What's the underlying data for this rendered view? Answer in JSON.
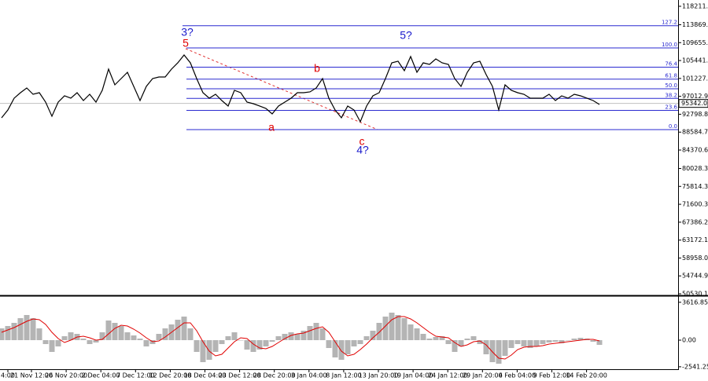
{
  "chart_data": [
    {
      "type": "line",
      "color": "#000000",
      "values": [
        91960,
        93800,
        96580,
        97870,
        98980,
        97500,
        97870,
        95650,
        92330,
        95650,
        97130,
        96580,
        97870,
        96020,
        97500,
        95650,
        98430,
        103420,
        99720,
        101200,
        102680,
        99350,
        96020,
        99350,
        101200,
        101570,
        101570,
        103420,
        104900,
        106750,
        104900,
        101200,
        97870,
        96580,
        97500,
        96020,
        94730,
        98430,
        97870,
        95650,
        95280,
        94730,
        94170,
        92880,
        94730,
        95650,
        96580,
        97870,
        97870,
        98060,
        98980,
        101200,
        96580,
        93800,
        91960,
        94730,
        93800,
        91030,
        94730,
        97130,
        97870,
        101200,
        104900,
        105270,
        103050,
        106380,
        102680,
        104900,
        104530,
        105820,
        104900,
        104530,
        101200,
        99350,
        102680,
        104900,
        105270,
        102120,
        99350,
        93800,
        99720,
        98430,
        97870,
        97500,
        96580,
        96580,
        96580,
        97500,
        96020,
        97130,
        96580,
        97500,
        97130,
        96580,
        96020,
        95100
      ],
      "ylim": [
        50160,
        119690
      ],
      "yticks": [
        118211.19,
        113869.39,
        109655.29,
        105441.15,
        101227.09,
        97012.99,
        92798.89,
        88584.79,
        84370.69,
        80028.39,
        75814.39,
        71600.39,
        67386.29,
        63172.19,
        58958.09,
        54744.99,
        50530.19
      ],
      "last_price": 95342.02,
      "fib_color": "#2a2ad0",
      "fib_levels": [
        {
          "label": "127.2",
          "price": 113641
        },
        {
          "label": "100.0",
          "price": 108411
        },
        {
          "label": "76.4",
          "price": 103873
        },
        {
          "label": "61.8",
          "price": 101066
        },
        {
          "label": "50.0",
          "price": 98797
        },
        {
          "label": "38.2",
          "price": 96527
        },
        {
          "label": "23.6",
          "price": 93720
        },
        {
          "label": "0.0",
          "price": 89182
        }
      ],
      "annotations": [
        "3?",
        "5",
        "b",
        "a",
        "c",
        "4?",
        "5?"
      ],
      "x_labels": [
        "4:00",
        "21 Nov 12:00",
        "26 Nov 20:00",
        "2 Dec 04:00",
        "7 Dec 12:00",
        "12 Dec 20:00",
        "18 Dec 04:00",
        "23 Dec 12:00",
        "28 Dec 20:00",
        "3 Jan 04:00",
        "8 Jan 12:00",
        "13 Jan 20:00",
        "19 Jan 04:00",
        "24 Jan 12:00",
        "29 Jan 20:00",
        "4 Feb 04:00",
        "9 Feb 12:00",
        "14 Feb 20:00"
      ]
    },
    {
      "type": "macd",
      "histogram": {
        "color": "#b4b4b4",
        "values": [
          1125,
          1350,
          1650,
          2100,
          2400,
          2100,
          1125,
          -375,
          -1125,
          -600,
          375,
          750,
          600,
          150,
          -375,
          -225,
          750,
          1875,
          1650,
          1350,
          750,
          450,
          150,
          -600,
          -375,
          600,
          1125,
          1500,
          1950,
          2250,
          1125,
          -1125,
          -2100,
          -1875,
          -1125,
          -375,
          375,
          750,
          0,
          -900,
          -1125,
          -900,
          -600,
          -150,
          375,
          600,
          750,
          600,
          900,
          1350,
          1650,
          1125,
          -750,
          -1650,
          -1875,
          -1350,
          -600,
          -375,
          375,
          900,
          1650,
          2250,
          2625,
          2400,
          2100,
          1500,
          1125,
          600,
          150,
          300,
          375,
          -375,
          -1125,
          -600,
          150,
          375,
          -375,
          -1350,
          -2100,
          -2250,
          -1500,
          -750,
          -375,
          -600,
          -750,
          -600,
          -375,
          -225,
          -150,
          -300,
          0,
          150,
          225,
          150,
          -150,
          -450
        ]
      },
      "signal": {
        "color": "#e00000",
        "values": [
          750,
          975,
          1200,
          1500,
          1800,
          2025,
          1950,
          1500,
          750,
          150,
          -225,
          0,
          300,
          375,
          225,
          0,
          75,
          600,
          1125,
          1425,
          1350,
          1050,
          675,
          225,
          -150,
          -75,
          300,
          750,
          1200,
          1650,
          1650,
          900,
          -150,
          -1050,
          -1500,
          -1350,
          -750,
          -150,
          225,
          150,
          -375,
          -750,
          -825,
          -600,
          -225,
          150,
          450,
          600,
          675,
          900,
          1125,
          1275,
          750,
          -150,
          -1050,
          -1500,
          -1350,
          -900,
          -375,
          225,
          750,
          1350,
          1950,
          2250,
          2250,
          2025,
          1650,
          1200,
          750,
          375,
          300,
          225,
          -225,
          -600,
          -450,
          -150,
          -75,
          -450,
          -1125,
          -1725,
          -1800,
          -1425,
          -900,
          -675,
          -600,
          -600,
          -525,
          -375,
          -300,
          -225,
          -150,
          -75,
          0,
          75,
          75,
          -75
        ]
      },
      "ylim": [
        -2775,
        4125
      ],
      "yticks": [
        3616.85,
        {
          "value": 0,
          "label": "0.00"
        },
        -2541.25
      ]
    }
  ]
}
